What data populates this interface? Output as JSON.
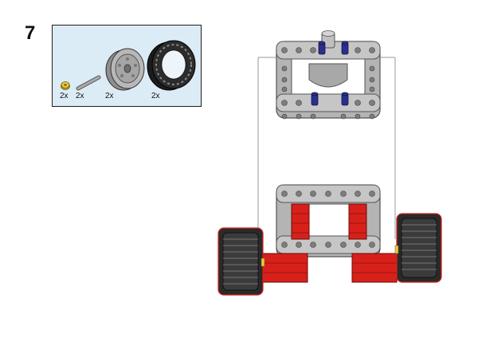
{
  "step": {
    "number": "7"
  },
  "parts_list": {
    "items": [
      {
        "name": "yellow-bush-icon",
        "qty": "2x"
      },
      {
        "name": "grey-axle-icon",
        "qty": "2x"
      },
      {
        "name": "wheel-rim-icon",
        "qty": "2x"
      },
      {
        "name": "tire-icon",
        "qty": "2x"
      }
    ]
  },
  "colors": {
    "parts_box_bg": "#dcecf6",
    "frame_grey": "#b4b4b4",
    "frame_dark": "#7d7d7d",
    "pin_blue": "#2a2f8c",
    "red": "#d8201a",
    "tire_black": "#2a2a2a",
    "bush_yellow": "#d6b52a"
  }
}
